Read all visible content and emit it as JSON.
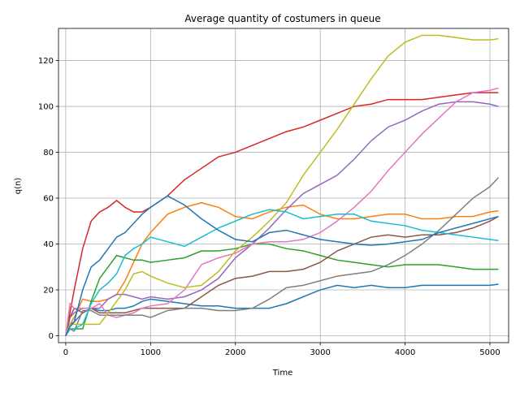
{
  "chart_data": {
    "type": "line",
    "title": "Average quantity of costumers in queue",
    "xlabel": "Time",
    "ylabel": "q(n)",
    "x": [
      0,
      50,
      100,
      200,
      300,
      400,
      500,
      600,
      700,
      800,
      900,
      1000,
      1200,
      1400,
      1600,
      1800,
      2000,
      2200,
      2400,
      2600,
      2800,
      3000,
      3200,
      3400,
      3600,
      3800,
      4000,
      4200,
      4400,
      4600,
      4800,
      5000,
      5100
    ],
    "series": [
      {
        "color": "#1f77b4",
        "values": [
          0,
          5,
          6,
          10,
          12,
          11,
          11,
          12,
          12,
          13,
          15,
          16,
          15,
          14,
          13,
          13,
          12,
          12,
          12,
          14,
          17,
          20,
          22,
          21,
          22,
          21,
          21,
          22,
          22,
          22,
          22,
          22,
          22.5
        ]
      },
      {
        "color": "#ff7f0e",
        "values": [
          0,
          5,
          8,
          16,
          15,
          15,
          16,
          18,
          24,
          32,
          40,
          45,
          53,
          56,
          58,
          56,
          52,
          51,
          54,
          56,
          57,
          53,
          51,
          51,
          52,
          53,
          53,
          51,
          51,
          52,
          52,
          54,
          54.5
        ]
      },
      {
        "color": "#2ca02c",
        "values": [
          0,
          3,
          3,
          3,
          15,
          25,
          30,
          35,
          34,
          33,
          33,
          32,
          33,
          34,
          37,
          37,
          38,
          40,
          40,
          38,
          37,
          35,
          33,
          32,
          31,
          30,
          31,
          31,
          31,
          30,
          29,
          29,
          29
        ]
      },
      {
        "color": "#d62728",
        "values": [
          0,
          10,
          20,
          38,
          50,
          54,
          56,
          59,
          56,
          54,
          54,
          56,
          61,
          68,
          73,
          78,
          80,
          83,
          86,
          89,
          91,
          94,
          97,
          100,
          101,
          103,
          103,
          103,
          104,
          105,
          106,
          106,
          106
        ]
      },
      {
        "color": "#9467bd",
        "values": [
          0,
          8,
          10,
          12,
          12,
          12,
          16,
          18,
          18,
          17,
          16,
          17,
          16,
          17,
          20,
          25,
          34,
          40,
          47,
          55,
          62,
          66,
          70,
          77,
          85,
          91,
          94,
          98,
          101,
          102,
          102,
          101,
          100
        ]
      },
      {
        "color": "#8c564b",
        "values": [
          0,
          8,
          12,
          10,
          12,
          10,
          10,
          10,
          10,
          11,
          12,
          12,
          12,
          12,
          17,
          22,
          25,
          26,
          28,
          28,
          29,
          32,
          37,
          40,
          43,
          44,
          43,
          44,
          44,
          45,
          47,
          50,
          52
        ]
      },
      {
        "color": "#e377c2",
        "values": [
          0,
          14,
          12,
          12,
          12,
          14,
          9,
          8,
          9,
          10,
          12,
          13,
          14,
          20,
          31,
          34,
          36,
          40,
          41,
          41,
          42,
          45,
          50,
          56,
          63,
          72,
          80,
          88,
          95,
          102,
          106,
          107,
          108
        ]
      },
      {
        "color": "#7f7f7f",
        "values": [
          0,
          3,
          2,
          11,
          11,
          9,
          9,
          9,
          9,
          9,
          9,
          8,
          11,
          12,
          12,
          11,
          11,
          12,
          16,
          21,
          22,
          24,
          26,
          27,
          28,
          31,
          35,
          40,
          46,
          53,
          60,
          65,
          69
        ]
      },
      {
        "color": "#bcbd22",
        "values": [
          0,
          5,
          5,
          5,
          5,
          5,
          10,
          15,
          20,
          27,
          28,
          26,
          23,
          21,
          22,
          28,
          37,
          43,
          50,
          58,
          70,
          80,
          90,
          101,
          112,
          122,
          128,
          131,
          131,
          130,
          129,
          129,
          129.5
        ]
      },
      {
        "color": "#17becf",
        "values": [
          0,
          3,
          3,
          5,
          14,
          20,
          23,
          27,
          35,
          38,
          40,
          43,
          41,
          39,
          43,
          47,
          50,
          53,
          55,
          54,
          51,
          52,
          53,
          53,
          50,
          49,
          48,
          46,
          45,
          44,
          43,
          42,
          41.5
        ]
      },
      {
        "color": "#1f77b4",
        "values": [
          0,
          4,
          6,
          20,
          30,
          33,
          38,
          43,
          45,
          49,
          53,
          56,
          61,
          57,
          51,
          46,
          42,
          41,
          45,
          46,
          44,
          42,
          41,
          40,
          39.5,
          40,
          41,
          42,
          45,
          47,
          49,
          51,
          52
        ]
      }
    ],
    "xlim": [
      -85,
      5220
    ],
    "ylim": [
      -3,
      134
    ],
    "xticks": [
      0,
      1000,
      2000,
      3000,
      4000,
      5000
    ],
    "yticks": [
      0,
      20,
      40,
      60,
      80,
      100,
      120
    ],
    "grid": true
  }
}
